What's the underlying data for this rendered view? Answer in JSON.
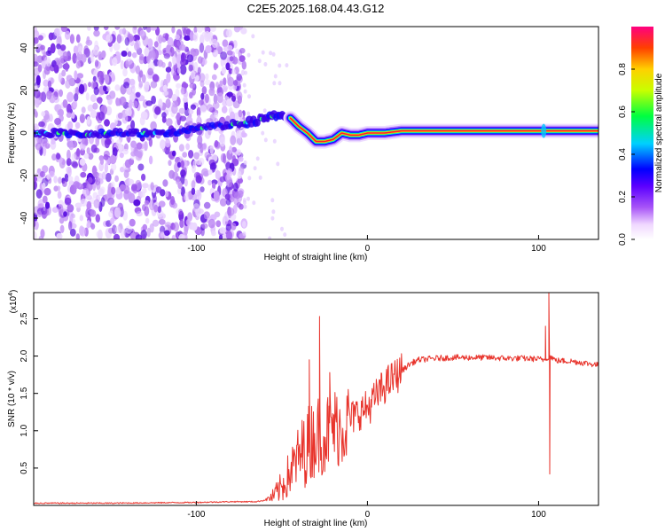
{
  "title": "C2E5.2025.168.04.43.G12",
  "chart_data": [
    {
      "type": "heatmap",
      "xlabel": "Height of straight line (km)",
      "ylabel": "Frequency (Hz)",
      "xlim": [
        -195,
        135
      ],
      "ylim": [
        -50,
        50
      ],
      "xticks": [
        -100,
        0,
        100
      ],
      "yticks": [
        -40,
        -20,
        0,
        20,
        40
      ],
      "grid": false,
      "ridge": {
        "x": [
          -195,
          -180,
          -165,
          -150,
          -135,
          -120,
          -110,
          -100,
          -90,
          -80,
          -70,
          -60,
          -55,
          -50,
          -45,
          -40,
          -35,
          -30,
          -25,
          -20,
          -15,
          -10,
          -5,
          0,
          10,
          20,
          60,
          100,
          135
        ],
        "y": [
          0,
          0,
          -1,
          0,
          0,
          0,
          1,
          2,
          3,
          4,
          5,
          7,
          8,
          9,
          7,
          3,
          0,
          -4,
          -4,
          -3,
          0,
          -1,
          -1,
          0,
          0,
          1,
          1,
          1,
          1
        ]
      },
      "colorbar": {
        "label": "Normalized spectral amplitude",
        "ticks": [
          0.0,
          0.2,
          0.4,
          0.6,
          0.8
        ],
        "range": [
          0,
          1
        ]
      }
    },
    {
      "type": "line",
      "xlabel": "Height of straight line (km)",
      "ylabel": "SNR (10 * v/v)",
      "ymultiplier": "(x10",
      "ymultiplier_exp": "4",
      "ymultiplier_close": ")",
      "xlim": [
        -195,
        135
      ],
      "ylim": [
        0,
        2.85
      ],
      "xticks": [
        -100,
        0,
        100
      ],
      "yticks": [
        0.5,
        1.0,
        1.5,
        2.0,
        2.5
      ],
      "grid": false,
      "series": [
        {
          "color": "#e8342c",
          "x": [
            -195,
            -150,
            -100,
            -80,
            -65,
            -60,
            -55,
            -50,
            -45,
            -40,
            -35,
            -30,
            -25,
            -20,
            -15,
            -10,
            -5,
            0,
            5,
            10,
            15,
            20,
            25,
            30,
            40,
            50,
            60,
            70,
            80,
            90,
            100,
            103,
            105,
            107,
            110,
            120,
            135
          ],
          "y": [
            0.03,
            0.03,
            0.04,
            0.05,
            0.05,
            0.07,
            0.12,
            0.25,
            0.45,
            0.65,
            0.8,
            0.95,
            0.95,
            1.05,
            1.05,
            1.15,
            1.25,
            1.3,
            1.45,
            1.6,
            1.7,
            1.8,
            1.9,
            1.95,
            1.97,
            1.98,
            1.98,
            1.98,
            1.97,
            1.97,
            1.96,
            1.95,
            1.98,
            2.0,
            1.94,
            1.93,
            1.88
          ]
        }
      ],
      "spikes": [
        {
          "x": -28,
          "y": 2.53
        },
        {
          "x": -34,
          "y": 1.95
        },
        {
          "x": -22,
          "y": 1.78
        },
        {
          "x": 106,
          "y": 2.85
        },
        {
          "x": 106.5,
          "y": 0.42
        },
        {
          "x": 104,
          "y": 2.4
        }
      ]
    }
  ]
}
